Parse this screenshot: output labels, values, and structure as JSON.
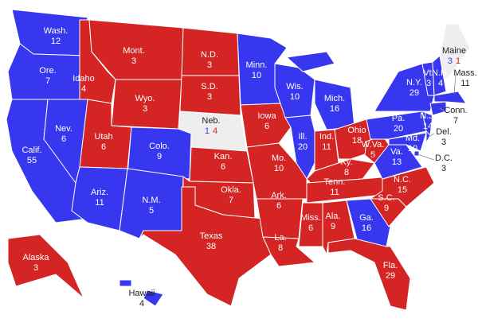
{
  "colors": {
    "D": "#3737ef",
    "R": "#d42424",
    "split": "#eeeeee"
  },
  "states": [
    {
      "name": "Wash.",
      "votes": 12,
      "winner": "D"
    },
    {
      "name": "Ore.",
      "votes": 7,
      "winner": "D"
    },
    {
      "name": "Calif.",
      "votes": 55,
      "winner": "D"
    },
    {
      "name": "Nev.",
      "votes": 6,
      "winner": "D"
    },
    {
      "name": "Idaho",
      "votes": 4,
      "winner": "R"
    },
    {
      "name": "Mont.",
      "votes": 3,
      "winner": "R"
    },
    {
      "name": "Wyo.",
      "votes": 3,
      "winner": "R"
    },
    {
      "name": "Utah",
      "votes": 6,
      "winner": "R"
    },
    {
      "name": "Colo.",
      "votes": 9,
      "winner": "D"
    },
    {
      "name": "Ariz.",
      "votes": 11,
      "winner": "D"
    },
    {
      "name": "N.M.",
      "votes": 5,
      "winner": "D"
    },
    {
      "name": "N.D.",
      "votes": 3,
      "winner": "R"
    },
    {
      "name": "S.D.",
      "votes": 3,
      "winner": "R"
    },
    {
      "name": "Neb.",
      "votes": [
        {
          "value": 1,
          "party": "D"
        },
        {
          "value": 4,
          "party": "R"
        }
      ],
      "winner": "split"
    },
    {
      "name": "Kan.",
      "votes": 6,
      "winner": "R"
    },
    {
      "name": "Okla.",
      "votes": 7,
      "winner": "R"
    },
    {
      "name": "Texas",
      "votes": 38,
      "winner": "R"
    },
    {
      "name": "Minn.",
      "votes": 10,
      "winner": "D"
    },
    {
      "name": "Iowa",
      "votes": 6,
      "winner": "R"
    },
    {
      "name": "Mo.",
      "votes": 10,
      "winner": "R"
    },
    {
      "name": "Ark.",
      "votes": 6,
      "winner": "R"
    },
    {
      "name": "La.",
      "votes": 8,
      "winner": "R"
    },
    {
      "name": "Wis.",
      "votes": 10,
      "winner": "D"
    },
    {
      "name": "Ill.",
      "votes": 20,
      "winner": "D"
    },
    {
      "name": "Mich.",
      "votes": 16,
      "winner": "D"
    },
    {
      "name": "Ind.",
      "votes": 11,
      "winner": "R"
    },
    {
      "name": "Ohio",
      "votes": 18,
      "winner": "R"
    },
    {
      "name": "Ky.",
      "votes": 8,
      "winner": "R"
    },
    {
      "name": "Tenn.",
      "votes": 11,
      "winner": "R"
    },
    {
      "name": "Miss.",
      "votes": 6,
      "winner": "R"
    },
    {
      "name": "Ala.",
      "votes": 9,
      "winner": "R"
    },
    {
      "name": "Ga.",
      "votes": 16,
      "winner": "D"
    },
    {
      "name": "Fla.",
      "votes": 29,
      "winner": "R"
    },
    {
      "name": "S.C.",
      "votes": 9,
      "winner": "R"
    },
    {
      "name": "N.C.",
      "votes": 15,
      "winner": "R"
    },
    {
      "name": "Va.",
      "votes": 13,
      "winner": "D"
    },
    {
      "name": "W.Va.",
      "votes": 5,
      "winner": "R"
    },
    {
      "name": "Pa.",
      "votes": 20,
      "winner": "D"
    },
    {
      "name": "N.Y.",
      "votes": 29,
      "winner": "D"
    },
    {
      "name": "Md.",
      "votes": 10,
      "winner": "D"
    },
    {
      "name": "Del.",
      "votes": 3,
      "winner": "D"
    },
    {
      "name": "D.C.",
      "votes": 3,
      "winner": "D"
    },
    {
      "name": "N.J.",
      "votes": 14,
      "winner": "D"
    },
    {
      "name": "Conn.",
      "votes": 7,
      "winner": "D"
    },
    {
      "name": "Mass.",
      "votes": 11,
      "winner": "D"
    },
    {
      "name": "Vt.",
      "votes": 3,
      "winner": "D"
    },
    {
      "name": "N.H.",
      "votes": 4,
      "winner": "D"
    },
    {
      "name": "Maine",
      "votes": [
        {
          "value": 3,
          "party": "D"
        },
        {
          "value": 1,
          "party": "R"
        }
      ],
      "winner": "split"
    },
    {
      "name": "Alaska",
      "votes": 3,
      "winner": "R"
    },
    {
      "name": "Hawaii",
      "votes": 4,
      "winner": "D"
    }
  ]
}
